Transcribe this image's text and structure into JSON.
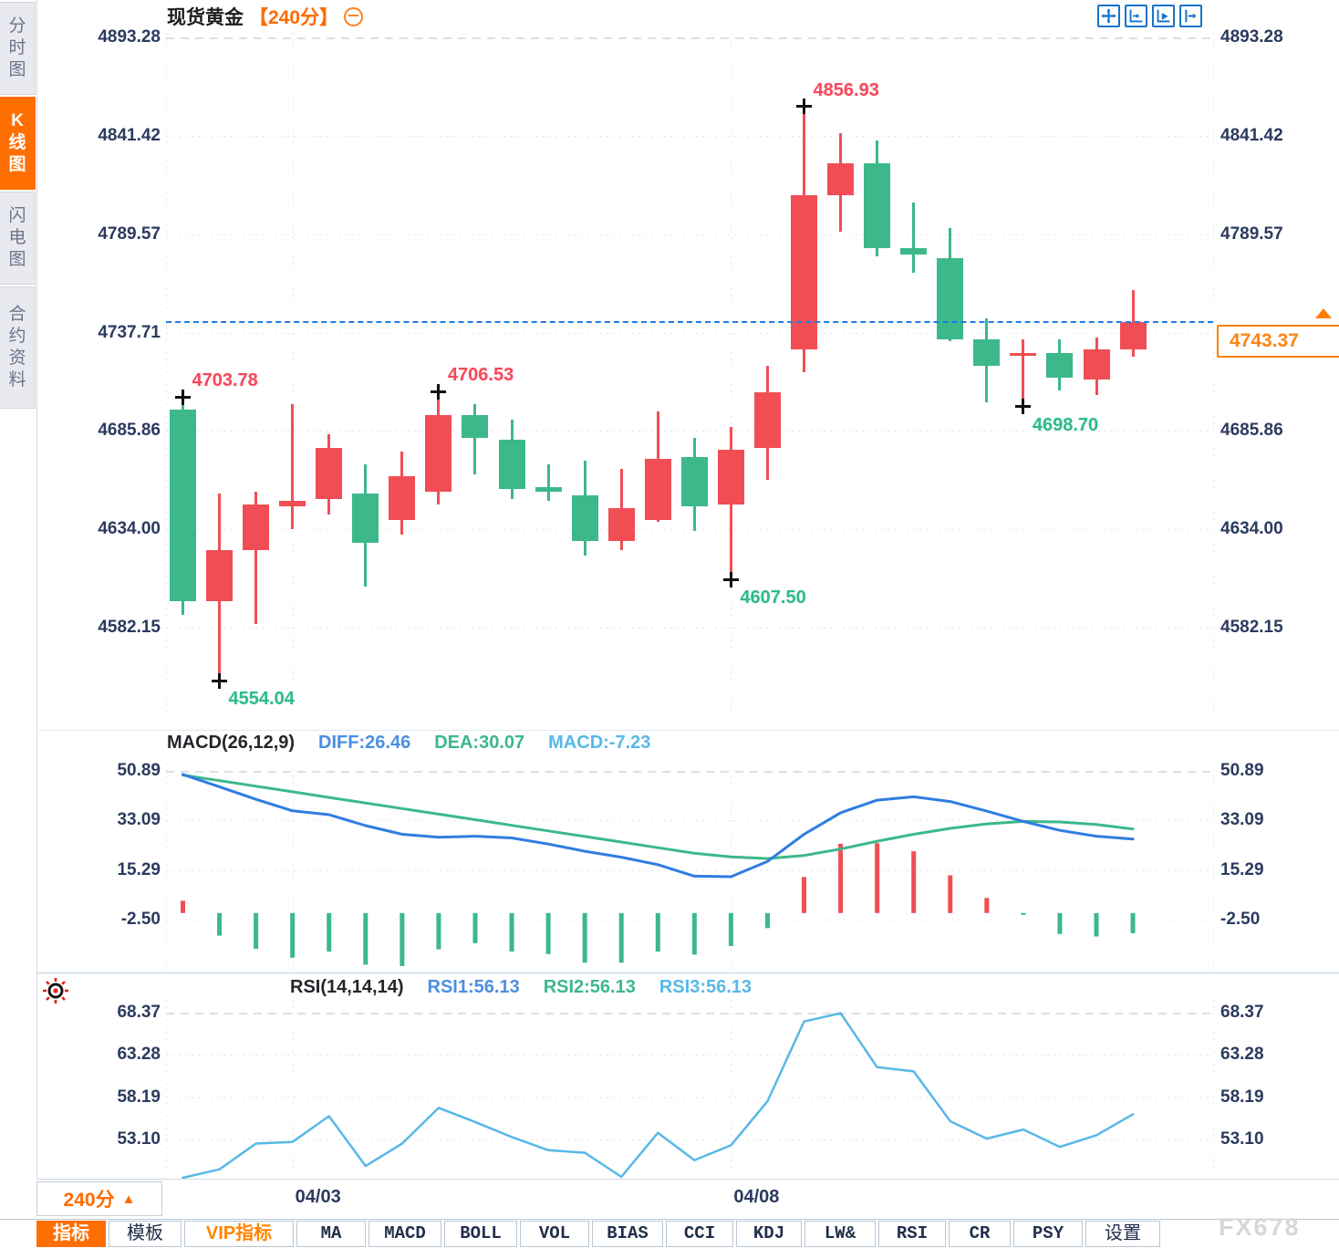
{
  "header": {
    "title": "现货黄金",
    "period": "【240分】"
  },
  "top_icons": [
    "move-tool-icon",
    "x-axis-scale-icon",
    "x-axis-play-icon",
    "pan-right-icon"
  ],
  "sidebar": {
    "items": [
      {
        "label": "分时图",
        "active": false
      },
      {
        "label": "K线图",
        "active": true
      },
      {
        "label": "闪电图",
        "active": false
      },
      {
        "label": "合约资料",
        "active": false
      }
    ]
  },
  "price_marker": {
    "value": "4743.37"
  },
  "xaxis": {
    "period_label": "240分",
    "period_arrow": "▲",
    "labels": [
      {
        "text": "04/03",
        "candle_index": 3
      },
      {
        "text": "04/08",
        "candle_index": 15
      }
    ]
  },
  "toolbar": {
    "items": [
      {
        "label": "指标",
        "active": true
      },
      {
        "label": "模板"
      },
      {
        "label": "VIP指标",
        "vip": true
      },
      {
        "label": "MA"
      },
      {
        "label": "MACD"
      },
      {
        "label": "BOLL"
      },
      {
        "label": "VOL"
      },
      {
        "label": "BIAS"
      },
      {
        "label": "CCI"
      },
      {
        "label": "KDJ"
      },
      {
        "label": "LW&"
      },
      {
        "label": "RSI"
      },
      {
        "label": "CR"
      },
      {
        "label": "PSY"
      },
      {
        "label": "设置"
      }
    ]
  },
  "watermark": "FX678",
  "colors": {
    "up_red": "#f04e54",
    "down_green": "#3cb88a",
    "accent_orange": "#ff6e00",
    "diff_blue": "#2f7de1",
    "dea_green": "#3cb88a",
    "rsi_blue": "#58b8e6",
    "price_line_blue": "#1e7ce8"
  },
  "chart_data": [
    {
      "type": "candlestick",
      "title": "现货黄金 240分",
      "ylim": [
        4582.15,
        4893.28
      ],
      "y_tick_labels": [
        "4893.28",
        "4841.42",
        "4789.57",
        "4737.71",
        "4685.86",
        "4634.00",
        "4582.15"
      ],
      "x_tick_labels": [
        "04/03",
        "04/08"
      ],
      "last_price": 4743.37,
      "ohlc": [
        [
          4697,
          4703.78,
          4589,
          4596
        ],
        [
          4596,
          4653,
          4554.04,
          4623
        ],
        [
          4623,
          4654,
          4584,
          4647
        ],
        [
          4646,
          4700,
          4634,
          4649
        ],
        [
          4650,
          4684,
          4642,
          4677
        ],
        [
          4653,
          4668,
          4604,
          4627
        ],
        [
          4639,
          4675,
          4631,
          4662
        ],
        [
          4654,
          4706.53,
          4647,
          4694
        ],
        [
          4694,
          4700,
          4663,
          4682
        ],
        [
          4681,
          4692,
          4650,
          4655
        ],
        [
          4656,
          4668,
          4649,
          4654
        ],
        [
          4652,
          4670,
          4620,
          4628
        ],
        [
          4628,
          4666,
          4623,
          4645
        ],
        [
          4639,
          4696,
          4638,
          4671
        ],
        [
          4672,
          4682,
          4633,
          4646
        ],
        [
          4647,
          4688,
          4607.5,
          4676
        ],
        [
          4677,
          4720,
          4660,
          4706
        ],
        [
          4729,
          4856.93,
          4717,
          4810
        ],
        [
          4810,
          4843,
          4791,
          4827
        ],
        [
          4827,
          4839,
          4778,
          4782
        ],
        [
          4782,
          4806,
          4769,
          4779
        ],
        [
          4777,
          4793,
          4733,
          4734
        ],
        [
          4734,
          4745,
          4701,
          4720
        ],
        [
          4726,
          4734,
          4698.7,
          4727
        ],
        [
          4727,
          4734,
          4707,
          4714
        ],
        [
          4713,
          4735,
          4705,
          4729
        ],
        [
          4729,
          4760,
          4725,
          4743.37
        ]
      ],
      "annotations": [
        {
          "index": 0,
          "text": "4703.78",
          "kind": "high"
        },
        {
          "index": 1,
          "text": "4554.04",
          "kind": "low"
        },
        {
          "index": 7,
          "text": "4706.53",
          "kind": "high"
        },
        {
          "index": 15,
          "text": "4607.50",
          "kind": "low"
        },
        {
          "index": 17,
          "text": "4856.93",
          "kind": "high"
        },
        {
          "index": 23,
          "text": "4698.70",
          "kind": "low"
        }
      ]
    },
    {
      "type": "bar",
      "name": "MACD",
      "label": "MACD(26,12,9)",
      "readout_diff": "DIFF:26.46",
      "readout_dea": "DEA:30.07",
      "readout_macd": "MACD:-7.23",
      "y_tick_labels": [
        "50.89",
        "33.09",
        "15.29",
        "-2.50"
      ],
      "series": [
        {
          "name": "DIFF",
          "values": [
            49.6,
            45.2,
            40.7,
            36.6,
            35.2,
            31.3,
            28.2,
            27.1,
            27.5,
            26.9,
            24.7,
            22.1,
            20.0,
            17.3,
            13.2,
            13.0,
            18.5,
            28.2,
            35.9,
            40.4,
            41.6,
            39.9,
            36.5,
            32.8,
            29.6,
            27.5,
            26.46
          ]
        },
        {
          "name": "DEA",
          "values": [
            49.4,
            47.4,
            45.4,
            43.4,
            41.4,
            39.4,
            37.4,
            35.4,
            33.4,
            31.4,
            29.4,
            27.4,
            25.4,
            23.4,
            21.4,
            20.1,
            19.5,
            20.6,
            22.9,
            25.7,
            28.2,
            30.3,
            31.9,
            32.8,
            32.6,
            31.7,
            30.07
          ]
        },
        {
          "name": "MACD_HIST",
          "values": [
            4.4,
            -8.1,
            -12.8,
            -16.0,
            -13.8,
            -18.5,
            -19.0,
            -13.0,
            -10.8,
            -13.8,
            -14.7,
            -17.8,
            -17.8,
            -13.8,
            -14.9,
            -11.8,
            -5.4,
            12.9,
            24.8,
            25.0,
            22.1,
            13.5,
            5.4,
            -0.5,
            -7.5,
            -8.4,
            -7.23
          ]
        }
      ]
    },
    {
      "type": "line",
      "name": "RSI",
      "label": "RSI(14,14,14)",
      "readout_rsi1": "RSI1:56.13",
      "readout_rsi2": "RSI2:56.13",
      "readout_rsi3": "RSI3:56.13",
      "y_tick_labels": [
        "68.37",
        "63.28",
        "58.19",
        "53.10"
      ],
      "series": [
        {
          "name": "RSI",
          "values": [
            48.1,
            49.5,
            52.6,
            52.8,
            55.9,
            49.9,
            52.6,
            56.9,
            55.2,
            53.4,
            51.8,
            51.5,
            48.6,
            53.9,
            50.6,
            52.4,
            57.7,
            67.3,
            68.3,
            61.8,
            61.3,
            55.3,
            53.2,
            54.3,
            52.2,
            53.6,
            56.13
          ]
        }
      ]
    }
  ]
}
